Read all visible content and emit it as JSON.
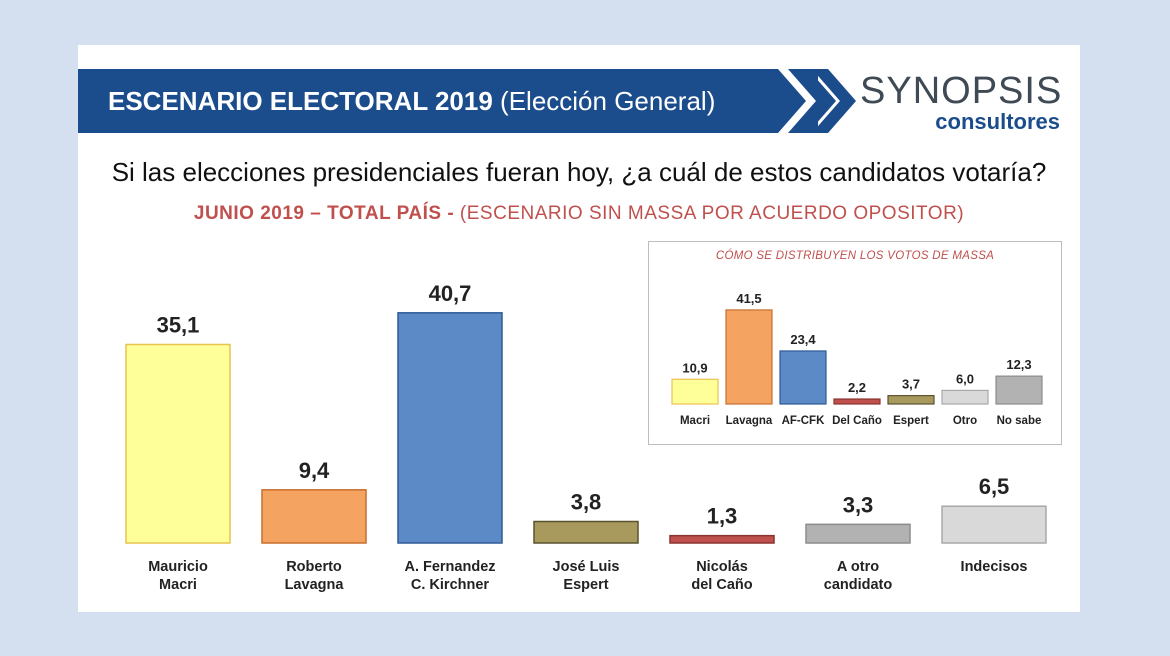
{
  "header": {
    "title_bold": "ESCENARIO ELECTORAL 2019",
    "title_rest": " (Elección General)",
    "logo_top": "SYNOPSIS",
    "logo_bottom": "consultores"
  },
  "question": "Si las elecciones presidenciales fueran hoy, ¿a cuál de estos candidatos votaría?",
  "subtitle_bold": "JUNIO 2019 – TOTAL PAÍS -",
  "subtitle_rest": " (ESCENARIO SIN MASSA POR ACUERDO OPOSITOR)",
  "chart_data": [
    {
      "type": "bar",
      "title": "",
      "categories": [
        [
          "Mauricio",
          "Macri"
        ],
        [
          "Roberto",
          "Lavagna"
        ],
        [
          "A. Fernandez",
          "C. Kirchner"
        ],
        [
          "José Luis",
          "Espert"
        ],
        [
          "Nicolás",
          "del Caño"
        ],
        [
          "A otro",
          "candidato"
        ],
        [
          "Indecisos"
        ]
      ],
      "values": [
        35.1,
        9.4,
        40.7,
        3.8,
        1.3,
        3.3,
        6.5
      ],
      "value_labels": [
        "35,1",
        "9,4",
        "40,7",
        "3,8",
        "1,3",
        "3,3",
        "6,5"
      ],
      "colors": [
        "#ffff99",
        "#f4a460",
        "#5b8ac6",
        "#a89a5c",
        "#c0504d",
        "#b2b2b2",
        "#d9d9d9"
      ],
      "border_colors": [
        "#e8c34f",
        "#c76e2e",
        "#2f5a96",
        "#5a5230",
        "#8a3330",
        "#8c8c8c",
        "#a8a8a8"
      ],
      "ylim": [
        0,
        45
      ],
      "grid": false,
      "legend": "none"
    },
    {
      "type": "bar",
      "title": "CÓMO SE DISTRIBUYEN LOS VOTOS DE MASSA",
      "categories": [
        "Macri",
        "Lavagna",
        "AF-CFK",
        "Del Caño",
        "Espert",
        "Otro",
        "No sabe"
      ],
      "values": [
        10.9,
        41.5,
        23.4,
        2.2,
        3.7,
        6.0,
        12.3
      ],
      "value_labels": [
        "10,9",
        "41,5",
        "23,4",
        "2,2",
        "3,7",
        "6,0",
        "12,3"
      ],
      "colors": [
        "#ffff99",
        "#f4a460",
        "#5b8ac6",
        "#c0504d",
        "#a89a5c",
        "#d9d9d9",
        "#b2b2b2"
      ],
      "border_colors": [
        "#e8c34f",
        "#c76e2e",
        "#2f5a96",
        "#8a3330",
        "#5a5230",
        "#a8a8a8",
        "#8c8c8c"
      ],
      "ylim": [
        0,
        45
      ],
      "grid": false,
      "legend": "none"
    }
  ]
}
